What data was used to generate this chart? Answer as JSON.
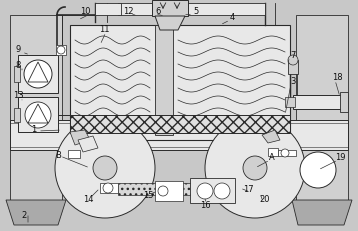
{
  "bg_color": "#c8c8c8",
  "line_color": "#2a2a2a",
  "white": "#ffffff",
  "light_gray": "#e8e8e8",
  "mid_gray": "#d0d0d0",
  "dark_gray": "#aaaaaa",
  "fig_w": 3.58,
  "fig_h": 2.31,
  "dpi": 100,
  "label_fs": 6.0
}
